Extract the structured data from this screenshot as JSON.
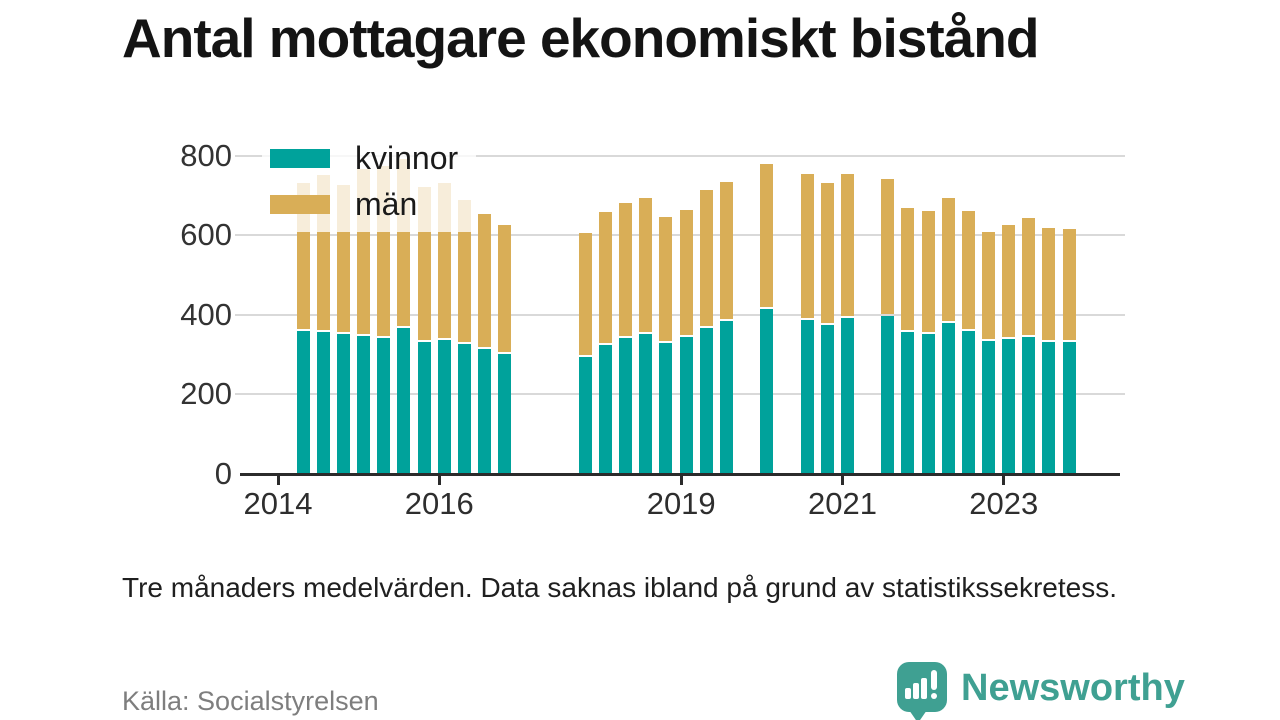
{
  "title": "Antal mottagare ekonomiskt bistånd",
  "note": "Tre månaders medelvärden. Data saknas ibland på grund av statistikssekretess.",
  "source": "Källa: Socialstyrelsen",
  "brand": {
    "name": "Newsworthy",
    "color": "#3fa092"
  },
  "chart_data": {
    "type": "bar",
    "stacked": true,
    "title": "Antal mottagare ekonomiskt bistånd",
    "ylim": [
      0,
      800
    ],
    "yticks": [
      0,
      200,
      400,
      600,
      800
    ],
    "xticks": [
      2014,
      2016,
      2019,
      2021,
      2023
    ],
    "grid": "horizontal",
    "legend_position": "top-left-overlay",
    "x_unit": "quarter-index, q0 ≈ Q2 2014, missing indices = data withheld",
    "series": [
      {
        "name": "kvinnor",
        "color": "#00a29b"
      },
      {
        "name": "män",
        "color": "#d9ae57"
      }
    ],
    "missing_quarters": [
      11,
      12,
      13,
      22,
      24,
      28
    ],
    "bars": [
      {
        "q": 0,
        "kvinnor": 359,
        "man": 371
      },
      {
        "q": 1,
        "kvinnor": 357,
        "man": 395
      },
      {
        "q": 2,
        "kvinnor": 350,
        "man": 375
      },
      {
        "q": 3,
        "kvinnor": 346,
        "man": 421
      },
      {
        "q": 4,
        "kvinnor": 340,
        "man": 433
      },
      {
        "q": 5,
        "kvinnor": 365,
        "man": 425
      },
      {
        "q": 6,
        "kvinnor": 330,
        "man": 392
      },
      {
        "q": 7,
        "kvinnor": 336,
        "man": 394
      },
      {
        "q": 8,
        "kvinnor": 325,
        "man": 363
      },
      {
        "q": 9,
        "kvinnor": 313,
        "man": 341
      },
      {
        "q": 10,
        "kvinnor": 300,
        "man": 324
      },
      {
        "q": 14,
        "kvinnor": 292,
        "man": 314
      },
      {
        "q": 15,
        "kvinnor": 323,
        "man": 335
      },
      {
        "q": 16,
        "kvinnor": 340,
        "man": 341
      },
      {
        "q": 17,
        "kvinnor": 350,
        "man": 342
      },
      {
        "q": 18,
        "kvinnor": 329,
        "man": 317
      },
      {
        "q": 19,
        "kvinnor": 343,
        "man": 319
      },
      {
        "q": 20,
        "kvinnor": 367,
        "man": 345
      },
      {
        "q": 21,
        "kvinnor": 383,
        "man": 350
      },
      {
        "q": 23,
        "kvinnor": 413,
        "man": 366
      },
      {
        "q": 25,
        "kvinnor": 386,
        "man": 368
      },
      {
        "q": 26,
        "kvinnor": 374,
        "man": 358
      },
      {
        "q": 27,
        "kvinnor": 392,
        "man": 362
      },
      {
        "q": 29,
        "kvinnor": 397,
        "man": 343
      },
      {
        "q": 30,
        "kvinnor": 355,
        "man": 312
      },
      {
        "q": 31,
        "kvinnor": 352,
        "man": 308
      },
      {
        "q": 32,
        "kvinnor": 378,
        "man": 316
      },
      {
        "q": 33,
        "kvinnor": 359,
        "man": 301
      },
      {
        "q": 34,
        "kvinnor": 334,
        "man": 274
      },
      {
        "q": 35,
        "kvinnor": 338,
        "man": 287
      },
      {
        "q": 36,
        "kvinnor": 344,
        "man": 300
      },
      {
        "q": 37,
        "kvinnor": 332,
        "man": 286
      },
      {
        "q": 38,
        "kvinnor": 332,
        "man": 282
      }
    ]
  }
}
